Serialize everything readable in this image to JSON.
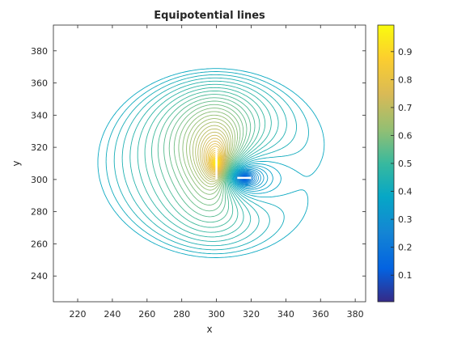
{
  "chart_data": {
    "type": "contour",
    "title": "Equipotential lines",
    "xlabel": "x",
    "ylabel": "y",
    "xlim": [
      206,
      386
    ],
    "ylim": [
      224,
      396
    ],
    "xticks": [
      220,
      240,
      260,
      280,
      300,
      320,
      340,
      360,
      380
    ],
    "yticks": [
      240,
      260,
      280,
      300,
      320,
      340,
      360,
      380
    ],
    "grid": false,
    "colormap": "parula",
    "colorbar": {
      "range": [
        0.005,
        0.995
      ],
      "ticks": [
        0.1,
        0.2,
        0.3,
        0.4,
        0.5,
        0.6,
        0.7,
        0.8,
        0.9
      ],
      "tick_labels": [
        "0.1",
        "0.2",
        "0.3",
        "0.4",
        "0.5",
        "0.6",
        "0.7",
        "0.8",
        "0.9"
      ]
    },
    "source": {
      "x": 300,
      "y": 310,
      "segment": [
        [
          300,
          300
        ],
        [
          300,
          320
        ]
      ],
      "potential": 1.0
    },
    "sink": {
      "x": 316,
      "y": 301,
      "segment": [
        [
          312,
          301
        ],
        [
          320,
          301
        ]
      ],
      "potential": 0.0
    },
    "contour_levels": {
      "min": 0.005,
      "max": 0.995,
      "count": 60
    },
    "outermost_contour": {
      "x_range": [
        233,
        377
      ],
      "y_range": [
        232,
        391
      ]
    }
  }
}
